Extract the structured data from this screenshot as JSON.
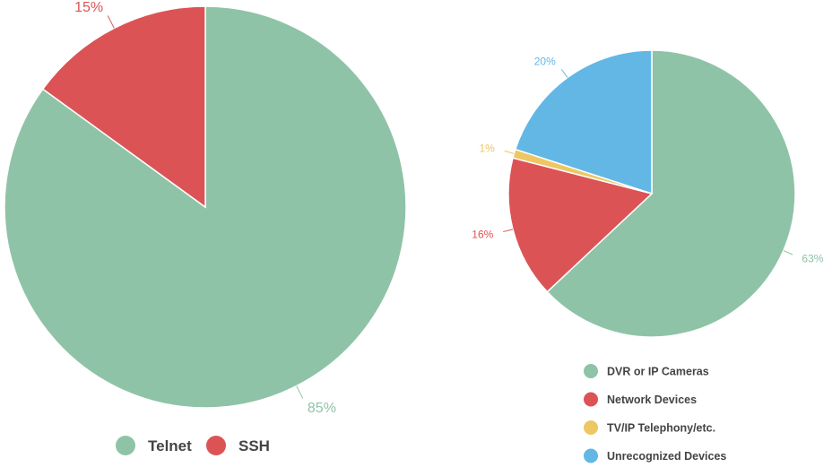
{
  "chart_data": [
    {
      "type": "pie",
      "series": [
        {
          "name": "Telnet",
          "value": 85,
          "label": "85%",
          "color": "#8fc3a7"
        },
        {
          "name": "SSH",
          "value": 15,
          "label": "15%",
          "color": "#dc5356"
        }
      ],
      "legend": {
        "placement": "bottom",
        "items": [
          "Telnet",
          "SSH"
        ]
      },
      "start_angle": "12 o'clock",
      "direction": "clockwise"
    },
    {
      "type": "pie",
      "series": [
        {
          "name": "DVR or IP Cameras",
          "value": 63,
          "label": "63%",
          "color": "#8fc3a7"
        },
        {
          "name": "Network Devices",
          "value": 16,
          "label": "16%",
          "color": "#dc5356"
        },
        {
          "name": "TV/IP Telephony/etc.",
          "value": 1,
          "label": "1%",
          "color": "#eec764"
        },
        {
          "name": "Unrecognized Devices",
          "value": 20,
          "label": "20%",
          "color": "#62b7e5"
        }
      ],
      "legend": {
        "placement": "bottom",
        "items": [
          "DVR or IP Cameras",
          "Network Devices",
          "TV/IP Telephony/etc.",
          "Unrecognized Devices"
        ]
      },
      "start_angle": "12 o'clock",
      "direction": "clockwise"
    }
  ]
}
